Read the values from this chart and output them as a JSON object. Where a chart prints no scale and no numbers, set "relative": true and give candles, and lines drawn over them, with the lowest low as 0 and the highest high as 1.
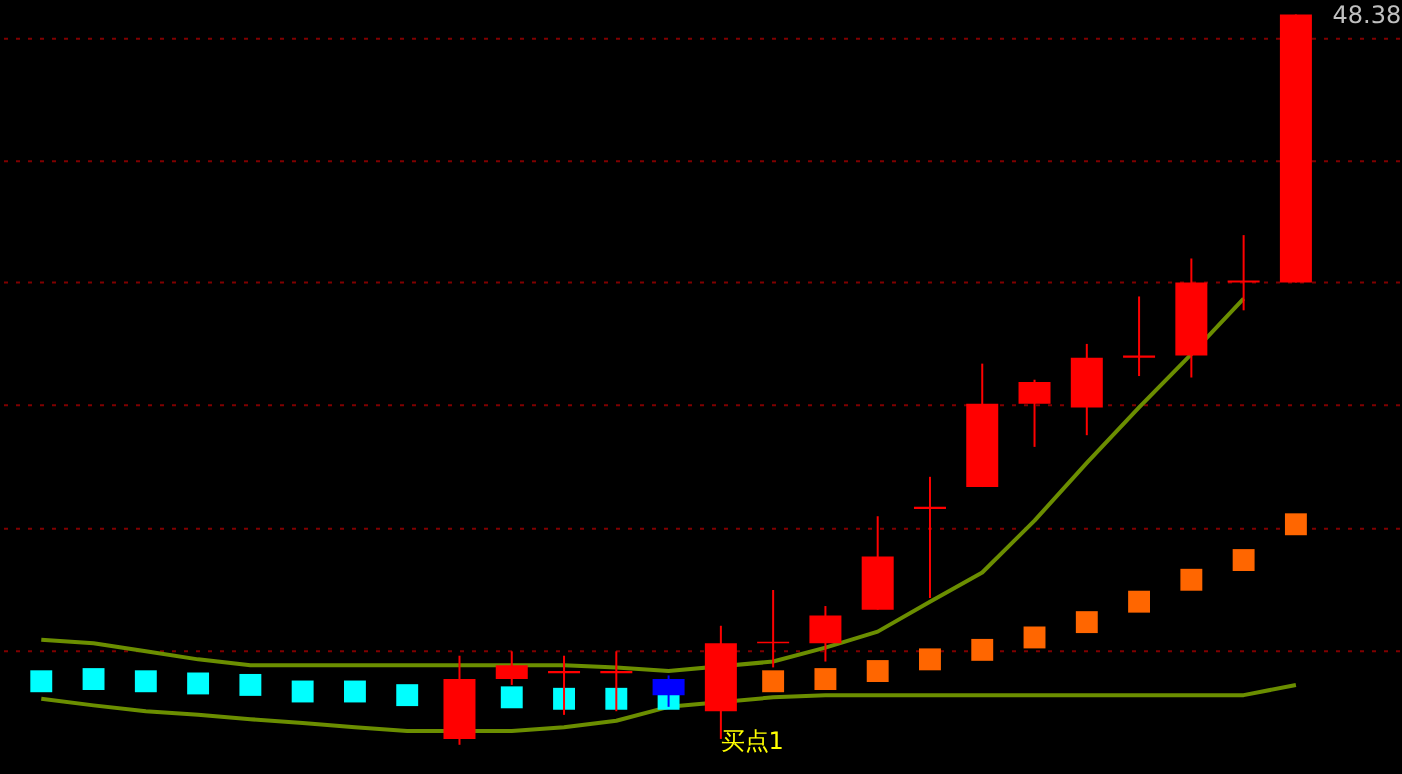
{
  "chart_data": {
    "type": "candlestick",
    "relative": true,
    "categories": [
      null,
      null,
      null,
      null,
      null,
      null,
      null,
      null,
      null,
      null,
      null,
      null,
      null,
      null,
      null,
      null,
      null,
      null,
      null,
      null,
      null,
      null,
      null,
      null,
      null
    ],
    "ohlc": [
      null,
      null,
      null,
      null,
      null,
      null,
      null,
      null,
      [
        0.008,
        0.122,
        0.0,
        0.09
      ],
      [
        0.09,
        0.128,
        0.082,
        0.109
      ],
      [
        0.098,
        0.122,
        0.041,
        0.101
      ],
      [
        0.098,
        0.128,
        0.046,
        0.101
      ],
      [
        0.09,
        0.095,
        0.052,
        0.068
      ],
      [
        0.046,
        0.163,
        0.008,
        0.139
      ],
      [
        0.139,
        0.212,
        0.106,
        0.141
      ],
      [
        0.139,
        0.19,
        0.114,
        0.177
      ],
      [
        0.185,
        0.313,
        0.185,
        0.258
      ],
      [
        0.323,
        0.367,
        0.201,
        0.326
      ],
      [
        0.353,
        0.522,
        0.353,
        0.467
      ],
      [
        0.467,
        0.5,
        0.408,
        0.497
      ],
      [
        0.462,
        0.549,
        0.424,
        0.53
      ],
      [
        0.53,
        0.614,
        0.505,
        0.533
      ],
      [
        0.533,
        0.666,
        0.503,
        0.633
      ],
      [
        0.633,
        0.698,
        0.595,
        0.636
      ],
      [
        0.633,
        1.0,
        0.633,
        1.0
      ]
    ],
    "colors": [
      null,
      null,
      null,
      null,
      null,
      null,
      null,
      null,
      "#ff0000",
      "#ff0000",
      "#ff0000",
      "#ff0000",
      "#0000ff",
      "#ff0000",
      "#ff0000",
      "#ff0000",
      "#ff0000",
      "#ff0000",
      "#ff0000",
      "#ff0000",
      "#ff0000",
      "#ff0000",
      "#ff0000",
      "#ff0000",
      "#ff0000"
    ],
    "series": [
      {
        "type": "line",
        "color": "#6b8e00",
        "values": [
          0.144,
          0.139,
          0.128,
          0.117,
          0.109,
          0.109,
          0.109,
          0.109,
          0.109,
          0.109,
          0.109,
          0.106,
          0.101,
          null,
          0.114,
          0.133,
          0.155,
          0.196,
          0.236,
          0.307,
          0.386,
          0.462,
          0.535,
          0.611,
          null
        ]
      },
      {
        "type": "line",
        "color": "#6b8e00",
        "values": [
          0.063,
          0.054,
          0.046,
          0.041,
          0.035,
          0.03,
          0.024,
          0.019,
          null,
          0.019,
          0.024,
          0.033,
          0.052,
          null,
          0.065,
          0.068,
          0.068,
          0.068,
          0.068,
          0.068,
          0.068,
          0.068,
          0.068,
          0.068,
          0.082
        ]
      },
      {
        "type": "scatter",
        "marker": "square",
        "color": "#00ffff",
        "values": [
          0.087,
          0.09,
          0.087,
          0.084,
          0.082,
          0.073,
          0.073,
          0.068,
          null,
          0.065,
          0.063,
          0.063,
          0.063,
          null,
          null,
          null,
          null,
          null,
          null,
          null,
          null,
          null,
          null,
          null,
          null
        ]
      },
      {
        "type": "scatter",
        "marker": "square",
        "color": "#ff6600",
        "values": [
          null,
          null,
          null,
          null,
          null,
          null,
          null,
          null,
          null,
          null,
          null,
          null,
          null,
          null,
          0.087,
          0.09,
          0.101,
          0.117,
          0.13,
          0.147,
          0.168,
          0.196,
          0.226,
          0.253,
          0.302
        ]
      }
    ],
    "ref_lines": [
      {
        "axis": "y",
        "value": 0.967,
        "color": "#800000",
        "line_style": "dotted"
      },
      {
        "axis": "y",
        "value": 0.799,
        "color": "#800000",
        "line_style": "dotted"
      },
      {
        "axis": "y",
        "value": 0.633,
        "color": "#800000",
        "line_style": "dotted"
      },
      {
        "axis": "y",
        "value": 0.465,
        "color": "#800000",
        "line_style": "dotted"
      },
      {
        "axis": "y",
        "value": 0.296,
        "color": "#800000",
        "line_style": "dotted"
      },
      {
        "axis": "y",
        "value": 0.128,
        "color": "#800000",
        "line_style": "dotted"
      }
    ],
    "annotations": [
      "48.38",
      "买点1"
    ]
  }
}
